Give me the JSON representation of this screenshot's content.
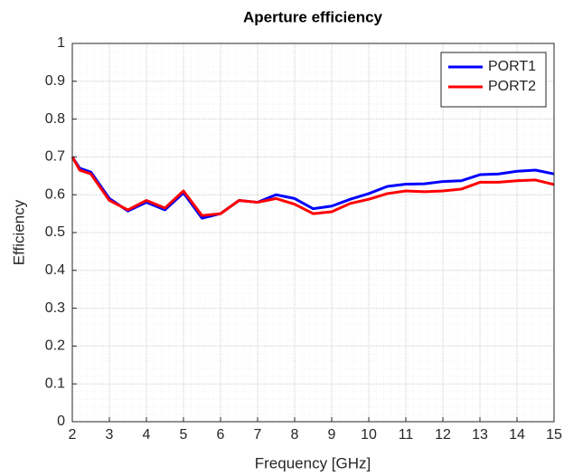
{
  "chart_data": {
    "type": "line",
    "title": "Aperture efficiency",
    "x_label": "Frequency [GHz]",
    "y_label": "Efficiency",
    "x": [
      2,
      2.2,
      2.5,
      3,
      3.5,
      4,
      4.5,
      5,
      5.5,
      6,
      6.5,
      7,
      7.5,
      8,
      8.5,
      9,
      9.5,
      10,
      10.5,
      11,
      11.5,
      12,
      12.5,
      13,
      13.5,
      14,
      14.5,
      15
    ],
    "series": [
      {
        "name": "PORT1",
        "color": "#0000ff",
        "values": [
          0.7,
          0.67,
          0.66,
          0.59,
          0.557,
          0.58,
          0.56,
          0.605,
          0.538,
          0.55,
          0.585,
          0.58,
          0.6,
          0.59,
          0.563,
          0.57,
          0.588,
          0.603,
          0.622,
          0.628,
          0.629,
          0.635,
          0.637,
          0.653,
          0.655,
          0.662,
          0.665,
          0.655
        ]
      },
      {
        "name": "PORT2",
        "color": "#ff0000",
        "values": [
          0.7,
          0.665,
          0.655,
          0.585,
          0.56,
          0.585,
          0.565,
          0.61,
          0.545,
          0.55,
          0.585,
          0.58,
          0.59,
          0.575,
          0.55,
          0.555,
          0.577,
          0.588,
          0.603,
          0.61,
          0.608,
          0.61,
          0.615,
          0.633,
          0.633,
          0.637,
          0.639,
          0.627
        ]
      }
    ],
    "xlim": [
      2,
      15
    ],
    "xticks": [
      2,
      3,
      4,
      5,
      6,
      7,
      8,
      9,
      10,
      11,
      12,
      13,
      14,
      15
    ],
    "ylim": [
      0,
      1
    ],
    "yticks": [
      0,
      0.1,
      0.2,
      0.3,
      0.4,
      0.5,
      0.6,
      0.7,
      0.8,
      0.9,
      1
    ],
    "grid": true,
    "minor_grid": true,
    "legend": "upper right"
  }
}
